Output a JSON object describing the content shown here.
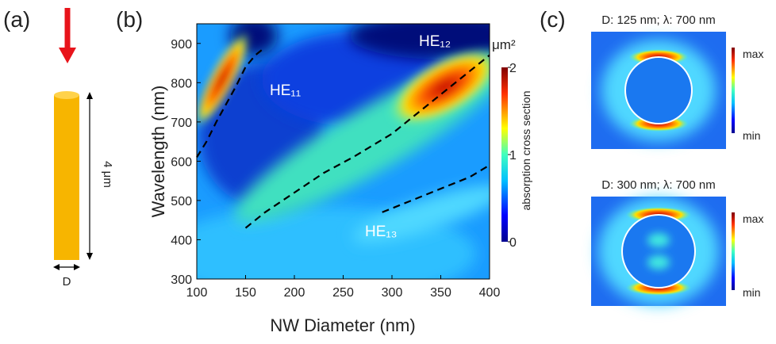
{
  "panel_a": {
    "label": "(a)",
    "length": "4 μm",
    "diameter": "D"
  },
  "panel_c": {
    "label": "(c)",
    "maps": [
      {
        "title": "D: 125 nm; λ: 700 nm",
        "max": "max",
        "min": "min"
      },
      {
        "title": "D: 300 nm; λ: 700 nm",
        "max": "max",
        "min": "min"
      }
    ]
  },
  "chart_data": {
    "type": "line",
    "label": "(b)",
    "x_label": "NW Diameter (nm)",
    "y_label": "Wavelength (nm)",
    "xlim": [
      100,
      400
    ],
    "xticks": [
      100,
      150,
      200,
      250,
      300,
      350,
      400
    ],
    "ylim": [
      300,
      950
    ],
    "yticks": [
      300,
      400,
      500,
      600,
      700,
      800,
      900
    ],
    "colorbar": {
      "unit": "μm²",
      "label": "absorption cross section",
      "lim": [
        0,
        2
      ],
      "ticks": [
        0,
        1,
        2
      ]
    },
    "series": [
      {
        "name": "HE₁₁",
        "color": "#000000",
        "x": [
          100,
          110,
          120,
          130,
          140,
          150,
          160,
          170
        ],
        "values": [
          610,
          650,
          700,
          745,
          790,
          840,
          870,
          890
        ]
      },
      {
        "name": "HE₁₂",
        "color": "#000000",
        "x": [
          150,
          170,
          200,
          230,
          260,
          300,
          330,
          360,
          400
        ],
        "values": [
          430,
          470,
          520,
          570,
          610,
          670,
          730,
          790,
          870
        ]
      },
      {
        "name": "HE₁₃",
        "color": "#000000",
        "x": [
          290,
          320,
          350,
          380,
          400
        ],
        "values": [
          470,
          500,
          530,
          560,
          590
        ]
      }
    ]
  }
}
